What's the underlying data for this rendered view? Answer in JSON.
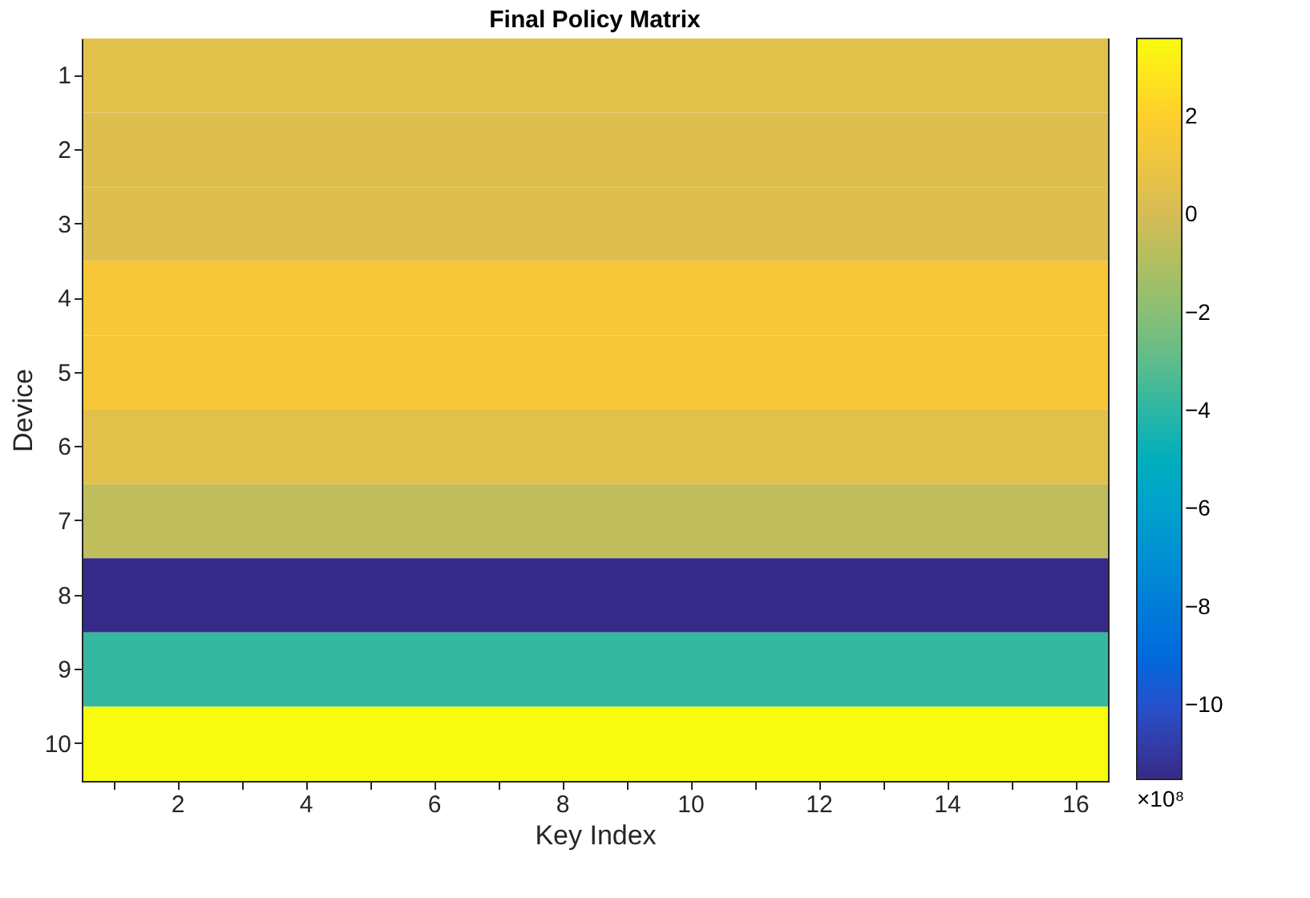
{
  "chart_data": {
    "type": "heatmap",
    "title": "Final Policy Matrix",
    "xlabel": "Key Index",
    "ylabel": "Device",
    "clabel": "×10⁸",
    "categories": [
      null,
      "2",
      null,
      "4",
      null,
      "6",
      null,
      "8",
      null,
      "10",
      null,
      "12",
      null,
      "14",
      null,
      "16"
    ],
    "y_categories": [
      "1",
      "2",
      "3",
      "4",
      "5",
      "6",
      "7",
      "8",
      "9",
      "10"
    ],
    "cells": [
      [
        0.6,
        0.6,
        0.6,
        0.6,
        0.6,
        0.6,
        0.6,
        0.6,
        0.6,
        0.6,
        0.6,
        0.6,
        0.6,
        0.6,
        0.6,
        0.6
      ],
      [
        0.4,
        0.4,
        0.4,
        0.4,
        0.4,
        0.4,
        0.4,
        0.4,
        0.4,
        0.4,
        0.4,
        0.4,
        0.4,
        0.4,
        0.4,
        0.4
      ],
      [
        0.4,
        0.4,
        0.4,
        0.4,
        0.4,
        0.4,
        0.4,
        0.4,
        0.4,
        0.4,
        0.4,
        0.4,
        0.4,
        0.4,
        0.4,
        0.4
      ],
      [
        1.5,
        1.5,
        1.5,
        1.5,
        1.5,
        1.5,
        1.5,
        1.5,
        1.5,
        1.5,
        1.5,
        1.5,
        1.5,
        1.5,
        1.5,
        1.5
      ],
      [
        1.5,
        1.5,
        1.5,
        1.5,
        1.5,
        1.5,
        1.5,
        1.5,
        1.5,
        1.5,
        1.5,
        1.5,
        1.5,
        1.5,
        1.5,
        1.5
      ],
      [
        0.6,
        0.6,
        0.6,
        0.6,
        0.6,
        0.6,
        0.6,
        0.6,
        0.6,
        0.6,
        0.6,
        0.6,
        0.6,
        0.6,
        0.6,
        0.6
      ],
      [
        -0.6,
        -0.6,
        -0.6,
        -0.6,
        -0.6,
        -0.6,
        -0.6,
        -0.6,
        -0.6,
        -0.6,
        -0.6,
        -0.6,
        -0.6,
        -0.6,
        -0.6,
        -0.6
      ],
      [
        -11.5,
        -11.5,
        -11.5,
        -11.5,
        -11.5,
        -11.5,
        -11.5,
        -11.5,
        -11.5,
        -11.5,
        -11.5,
        -11.5,
        -11.5,
        -11.5,
        -11.5,
        -11.5
      ],
      [
        -3.8,
        -3.8,
        -3.8,
        -3.8,
        -3.8,
        -3.8,
        -3.8,
        -3.8,
        -3.8,
        -3.8,
        -3.8,
        -3.8,
        -3.8,
        -3.8,
        -3.8,
        -3.8
      ],
      [
        3.6,
        3.6,
        3.6,
        3.6,
        3.6,
        3.6,
        3.6,
        3.6,
        3.6,
        3.6,
        3.6,
        3.6,
        3.6,
        3.6,
        3.6,
        3.6
      ]
    ],
    "clim": [
      -11.5,
      3.6
    ],
    "cticks": [
      -10,
      -8,
      -6,
      -4,
      -2,
      0,
      2
    ]
  }
}
